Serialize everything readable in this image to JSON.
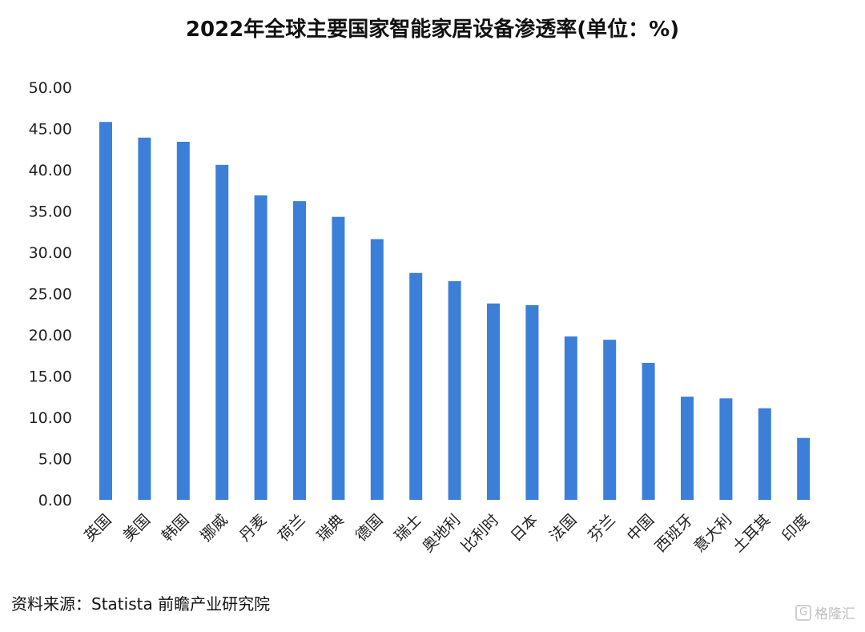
{
  "chart_data": {
    "type": "bar",
    "title": "2022年全球主要国家智能家居设备渗透率(单位：%)",
    "categories": [
      "英国",
      "美国",
      "韩国",
      "挪威",
      "丹麦",
      "荷兰",
      "瑞典",
      "德国",
      "瑞士",
      "奥地利",
      "比利时",
      "日本",
      "法国",
      "芬兰",
      "中国",
      "西班牙",
      "意大利",
      "土耳其",
      "印度"
    ],
    "values": [
      45.8,
      43.9,
      43.4,
      40.6,
      36.9,
      36.2,
      34.3,
      31.6,
      27.5,
      26.5,
      23.8,
      23.6,
      19.8,
      19.4,
      16.6,
      12.5,
      12.3,
      11.1,
      7.5
    ],
    "ylim": [
      0,
      50
    ],
    "yticks": [
      "0.00",
      "5.00",
      "10.00",
      "15.00",
      "20.00",
      "25.00",
      "30.00",
      "35.00",
      "40.00",
      "45.00",
      "50.00"
    ],
    "xlabel": "",
    "ylabel": "",
    "grid": false,
    "bar_color": "#3B7FD8"
  },
  "source": "资料来源：Statista 前瞻产业研究院",
  "watermark": "格隆汇"
}
